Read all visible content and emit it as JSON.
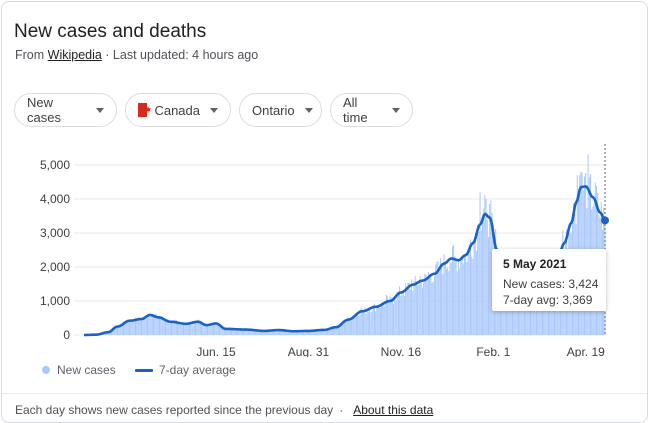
{
  "header": {
    "title": "New cases and deaths",
    "source_prefix": "From ",
    "source_link": "Wikipedia",
    "updated": " · Last updated: 4 hours ago"
  },
  "filters": [
    {
      "label": "New cases",
      "icon": "caret-down-icon"
    },
    {
      "label": "Canada",
      "icon": "canada-flag-icon"
    },
    {
      "label": "Ontario",
      "icon": "caret-down-icon"
    },
    {
      "label": "All time",
      "icon": "caret-down-icon"
    }
  ],
  "tooltip": {
    "date": "5 May 2021",
    "new_cases": "New cases: 3,424",
    "avg": "7-day avg: 3,369"
  },
  "legend": {
    "new_cases": "New cases",
    "avg": "7-day average"
  },
  "footer": {
    "note": "Each day shows new cases reported since the previous day",
    "separator": "·",
    "about": "About this data"
  },
  "colors": {
    "bars": "#a8c7fa",
    "line": "#1a62c5",
    "grid": "#e8eaed"
  },
  "chart_data": {
    "type": "bar",
    "title": "",
    "xlabel": "",
    "ylabel": "",
    "ylim": [
      0,
      5000
    ],
    "yticks": [
      "0",
      "1,000",
      "2,000",
      "3,000",
      "4,000",
      "5,000"
    ],
    "ytick_values": [
      0,
      1000,
      2000,
      3000,
      4000,
      5000
    ],
    "xticks": [
      {
        "label": "Jun. 15",
        "index": 110
      },
      {
        "label": "Aug. 31",
        "index": 187
      },
      {
        "label": "Nov. 16",
        "index": 264
      },
      {
        "label": "Feb. 1",
        "index": 341
      },
      {
        "label": "Apr. 19",
        "index": 418
      }
    ],
    "first_date_index": 0,
    "last_date_index": 434,
    "anchors": [
      [
        0,
        0
      ],
      [
        10,
        10
      ],
      [
        20,
        80
      ],
      [
        28,
        250
      ],
      [
        38,
        420
      ],
      [
        48,
        470
      ],
      [
        55,
        590
      ],
      [
        62,
        520
      ],
      [
        72,
        390
      ],
      [
        85,
        330
      ],
      [
        95,
        390
      ],
      [
        102,
        290
      ],
      [
        110,
        340
      ],
      [
        118,
        180
      ],
      [
        135,
        160
      ],
      [
        150,
        120
      ],
      [
        162,
        145
      ],
      [
        175,
        110
      ],
      [
        187,
        120
      ],
      [
        200,
        150
      ],
      [
        210,
        230
      ],
      [
        220,
        450
      ],
      [
        232,
        700
      ],
      [
        243,
        830
      ],
      [
        255,
        1000
      ],
      [
        264,
        1250
      ],
      [
        274,
        1480
      ],
      [
        282,
        1600
      ],
      [
        292,
        1800
      ],
      [
        300,
        2100
      ],
      [
        306,
        2250
      ],
      [
        312,
        2200
      ],
      [
        318,
        2350
      ],
      [
        324,
        2700
      ],
      [
        330,
        3250
      ],
      [
        334,
        3560
      ],
      [
        338,
        3450
      ],
      [
        344,
        2500
      ],
      [
        350,
        1600
      ],
      [
        356,
        1150
      ],
      [
        364,
        950
      ],
      [
        372,
        1050
      ],
      [
        380,
        1300
      ],
      [
        388,
        1650
      ],
      [
        394,
        2100
      ],
      [
        400,
        2700
      ],
      [
        406,
        3300
      ],
      [
        410,
        3900
      ],
      [
        414,
        4350
      ],
      [
        418,
        4370
      ],
      [
        424,
        4050
      ],
      [
        430,
        3600
      ],
      [
        434,
        3369
      ]
    ],
    "series": [
      {
        "name": "New cases",
        "kind": "bar"
      },
      {
        "name": "7-day average",
        "kind": "line"
      }
    ],
    "highlight": {
      "index": 434,
      "new_cases": 3424,
      "avg": 3369
    },
    "legend": "bottom-left",
    "grid": true
  }
}
